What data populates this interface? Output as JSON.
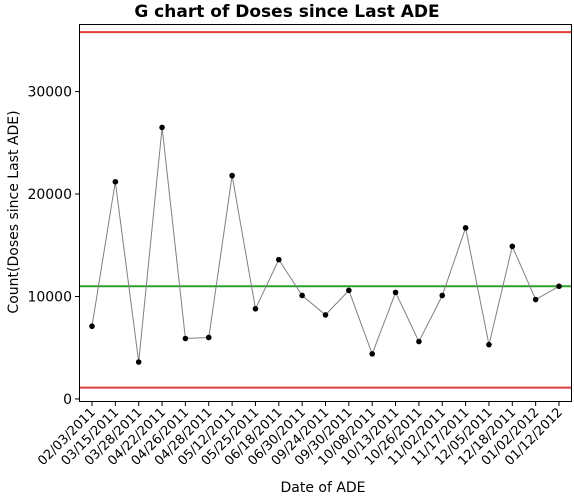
{
  "chart_data": {
    "type": "line",
    "title": "G chart of Doses since Last ADE",
    "xlabel": "Date of ADE",
    "ylabel": "Count(Doses since Last ADE)",
    "x": [
      "02/03/2011",
      "03/15/2011",
      "03/28/2011",
      "04/22/2011",
      "04/26/2011",
      "04/28/2011",
      "05/12/2011",
      "05/25/2011",
      "06/18/2011",
      "06/30/2011",
      "09/24/2011",
      "09/30/2011",
      "10/08/2011",
      "10/13/2011",
      "10/26/2011",
      "11/02/2011",
      "11/17/2011",
      "12/05/2011",
      "12/18/2011",
      "01/02/2012",
      "01/12/2012"
    ],
    "values": [
      7100,
      21200,
      3600,
      26500,
      5900,
      6000,
      21800,
      8800,
      13600,
      10100,
      8200,
      10600,
      4400,
      10400,
      5600,
      10100,
      16700,
      5300,
      14900,
      9700,
      11000
    ],
    "center_line": 11000,
    "ucl": 35800,
    "lcl": 1100,
    "yticks": [
      0,
      10000,
      20000,
      30000
    ],
    "ylim": [
      -200,
      36500
    ],
    "colors": {
      "center": "#2ca02c",
      "limits": "#e03c3c",
      "line": "#808080",
      "points": "#000000"
    }
  }
}
